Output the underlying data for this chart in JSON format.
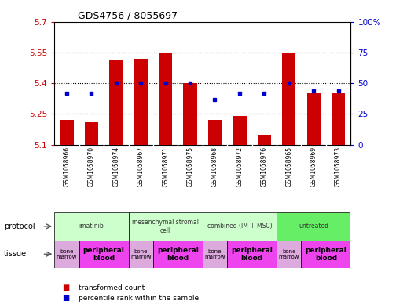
{
  "title": "GDS4756 / 8055697",
  "samples": [
    "GSM1058966",
    "GSM1058970",
    "GSM1058974",
    "GSM1058967",
    "GSM1058971",
    "GSM1058975",
    "GSM1058968",
    "GSM1058972",
    "GSM1058976",
    "GSM1058965",
    "GSM1058969",
    "GSM1058973"
  ],
  "bar_values": [
    5.22,
    5.21,
    5.51,
    5.52,
    5.55,
    5.4,
    5.22,
    5.24,
    5.15,
    5.55,
    5.35,
    5.35
  ],
  "bar_base": 5.1,
  "dot_values": [
    42,
    42,
    50,
    50,
    50,
    50,
    37,
    42,
    42,
    50,
    44,
    44
  ],
  "bar_color": "#cc0000",
  "dot_color": "#0000cc",
  "ylim_left": [
    5.1,
    5.7
  ],
  "ylim_right": [
    0,
    100
  ],
  "yticks_left": [
    5.1,
    5.25,
    5.4,
    5.55,
    5.7
  ],
  "yticks_right": [
    0,
    25,
    50,
    75,
    100
  ],
  "ytick_labels_left": [
    "5.1",
    "5.25",
    "5.4",
    "5.55",
    "5.7"
  ],
  "ytick_labels_right": [
    "0",
    "25",
    "50",
    "75",
    "100%"
  ],
  "hlines": [
    5.25,
    5.4,
    5.55
  ],
  "protocols": [
    {
      "label": "imatinib",
      "start": 0,
      "end": 3,
      "color": "#ccffcc"
    },
    {
      "label": "mesenchymal stromal\ncell",
      "start": 3,
      "end": 6,
      "color": "#ccffcc"
    },
    {
      "label": "combined (IM + MSC)",
      "start": 6,
      "end": 9,
      "color": "#ccffcc"
    },
    {
      "label": "untreated",
      "start": 9,
      "end": 12,
      "color": "#66ee66"
    }
  ],
  "tissues": [
    {
      "label": "bone\nmarrow",
      "start": 0,
      "end": 1,
      "color": "#ddaadd"
    },
    {
      "label": "peripheral\nblood",
      "start": 1,
      "end": 3,
      "color": "#ee44ee"
    },
    {
      "label": "bone\nmarrow",
      "start": 3,
      "end": 4,
      "color": "#ddaadd"
    },
    {
      "label": "peripheral\nblood",
      "start": 4,
      "end": 6,
      "color": "#ee44ee"
    },
    {
      "label": "bone\nmarrow",
      "start": 6,
      "end": 7,
      "color": "#ddaadd"
    },
    {
      "label": "peripheral\nblood",
      "start": 7,
      "end": 9,
      "color": "#ee44ee"
    },
    {
      "label": "bone\nmarrow",
      "start": 9,
      "end": 10,
      "color": "#ddaadd"
    },
    {
      "label": "peripheral\nblood",
      "start": 10,
      "end": 12,
      "color": "#ee44ee"
    }
  ],
  "protocol_row_label": "protocol",
  "tissue_row_label": "tissue",
  "legend_bar_label": "transformed count",
  "legend_dot_label": "percentile rank within the sample",
  "sample_label_bg": "#cccccc",
  "col_divider_color": "#aaaaaa"
}
